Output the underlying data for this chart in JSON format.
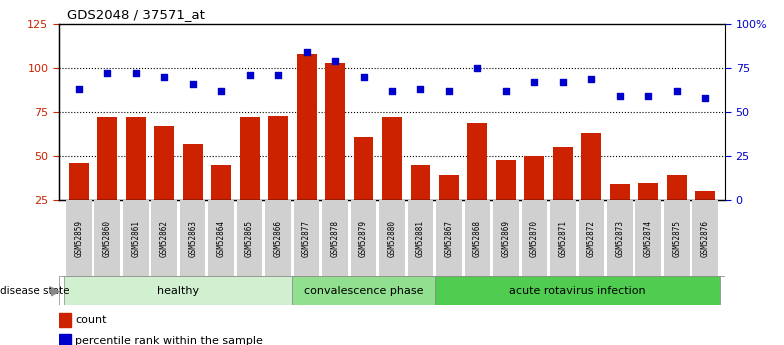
{
  "title": "GDS2048 / 37571_at",
  "samples": [
    "GSM52859",
    "GSM52860",
    "GSM52861",
    "GSM52862",
    "GSM52863",
    "GSM52864",
    "GSM52865",
    "GSM52866",
    "GSM52877",
    "GSM52878",
    "GSM52879",
    "GSM52880",
    "GSM52881",
    "GSM52867",
    "GSM52868",
    "GSM52869",
    "GSM52870",
    "GSM52871",
    "GSM52872",
    "GSM52873",
    "GSM52874",
    "GSM52875",
    "GSM52876"
  ],
  "counts": [
    46,
    72,
    72,
    67,
    57,
    45,
    72,
    73,
    108,
    103,
    61,
    72,
    45,
    39,
    69,
    48,
    50,
    55,
    63,
    34,
    35,
    39,
    30
  ],
  "percentiles_left": [
    88,
    97,
    97,
    95,
    91,
    87,
    96,
    96,
    109,
    104,
    95,
    87,
    88,
    87,
    100,
    87,
    92,
    92,
    94,
    84,
    84,
    87,
    83
  ],
  "groups": [
    {
      "label": "healthy",
      "start": 0,
      "end": 8,
      "color": "#d0f0d0"
    },
    {
      "label": "convalescence phase",
      "start": 8,
      "end": 13,
      "color": "#90e090"
    },
    {
      "label": "acute rotavirus infection",
      "start": 13,
      "end": 23,
      "color": "#50cc50"
    }
  ],
  "bar_color": "#cc2200",
  "dot_color": "#0000cc",
  "left_ylim": [
    25,
    125
  ],
  "left_yticks": [
    25,
    50,
    75,
    100,
    125
  ],
  "right_yticks_pos": [
    25,
    50,
    75,
    100,
    125
  ],
  "right_yticklabels": [
    "0",
    "25",
    "50",
    "75",
    "100%"
  ],
  "grid_values": [
    50,
    75,
    100
  ],
  "background_color": "#ffffff",
  "bar_width": 0.7,
  "xtick_bg_color": "#d0d0d0"
}
